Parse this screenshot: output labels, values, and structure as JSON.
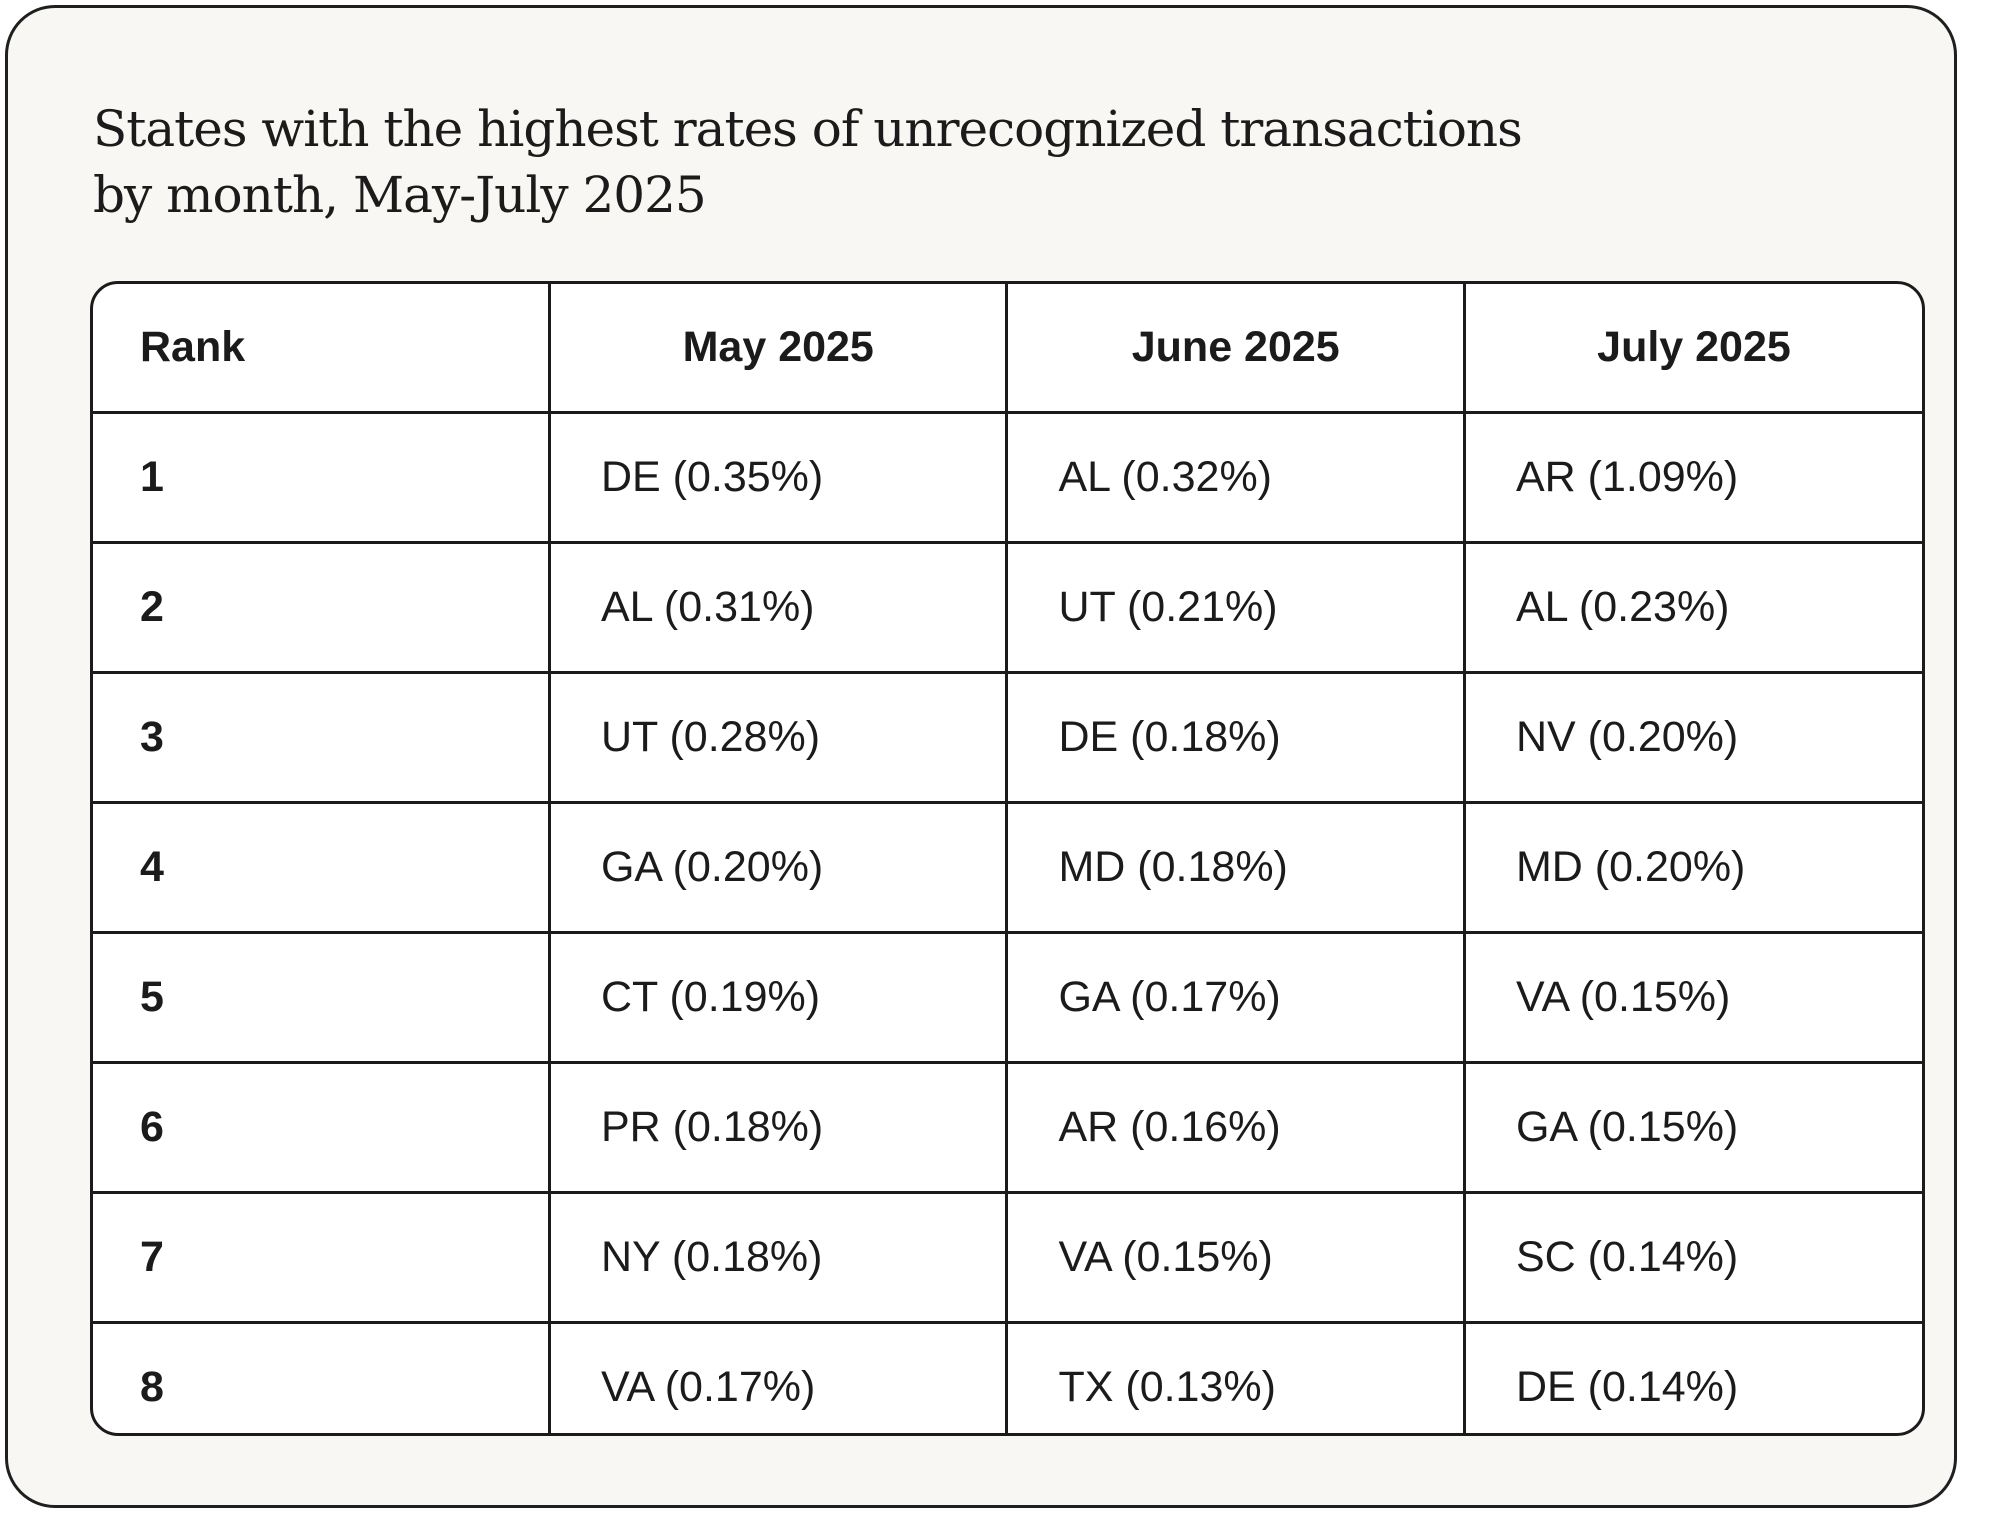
{
  "chart_data": {
    "type": "table",
    "title_lines": [
      "States with the highest rates of unrecognized transactions",
      "by month, May-July 2025"
    ],
    "columns": [
      "Rank",
      "May 2025",
      "June 2025",
      "July 2025"
    ],
    "rows": [
      {
        "rank": "1",
        "may": "DE (0.35%)",
        "june": "AL (0.32%)",
        "july": "AR (1.09%)"
      },
      {
        "rank": "2",
        "may": "AL (0.31%)",
        "june": "UT (0.21%)",
        "july": "AL (0.23%)"
      },
      {
        "rank": "3",
        "may": "UT (0.28%)",
        "june": "DE (0.18%)",
        "july": "NV (0.20%)"
      },
      {
        "rank": "4",
        "may": "GA (0.20%)",
        "june": "MD (0.18%)",
        "july": "MD (0.20%)"
      },
      {
        "rank": "5",
        "may": "CT (0.19%)",
        "june": "GA (0.17%)",
        "july": "VA (0.15%)"
      },
      {
        "rank": "6",
        "may": "PR (0.18%)",
        "june": "AR (0.16%)",
        "july": "GA (0.15%)"
      },
      {
        "rank": "7",
        "may": "NY (0.18%)",
        "june": "VA (0.15%)",
        "july": "SC (0.14%)"
      },
      {
        "rank": "8",
        "may": "VA (0.17%)",
        "june": "TX (0.13%)",
        "july": "DE (0.14%)"
      }
    ]
  }
}
